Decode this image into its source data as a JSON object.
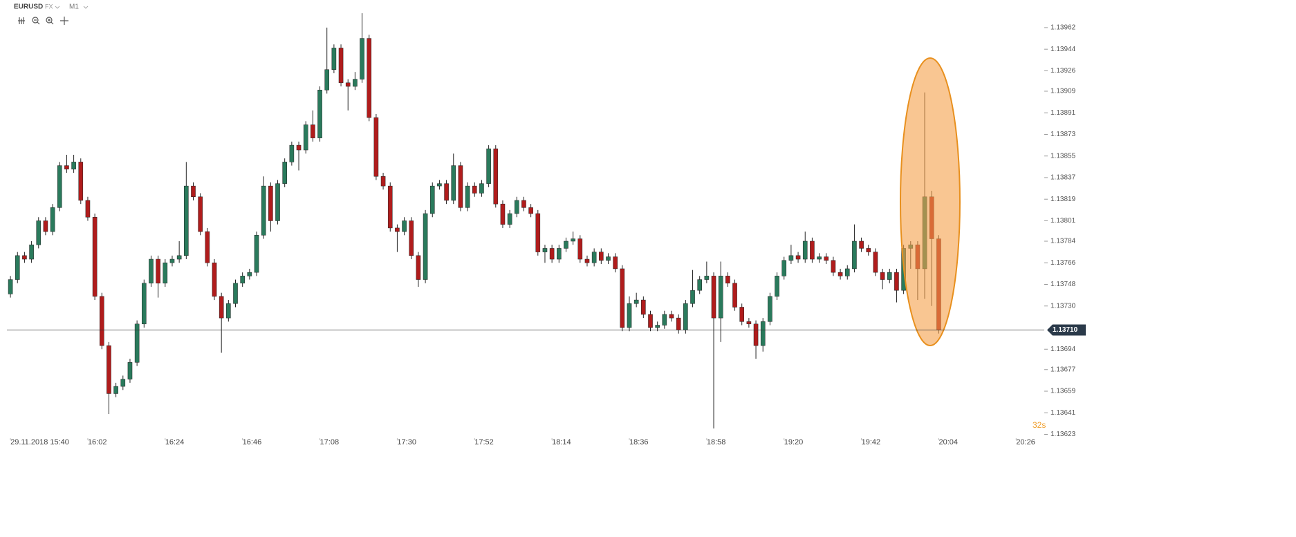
{
  "chart_data": {
    "type": "candlestick",
    "header": {
      "symbol": "EURUSD",
      "market": "FX",
      "timeframe": "M1"
    },
    "countdown": "32s",
    "up_color": "#2a7a5c",
    "down_color": "#b01c1c",
    "xlim": [
      "15:39",
      "20:34"
    ],
    "xticks": [
      {
        "value": "15:40",
        "label": "29.11.2018 15:40"
      },
      "16:02",
      "16:24",
      "16:46",
      "17:08",
      "17:30",
      "17:52",
      "18:14",
      "18:36",
      "18:58",
      "19:20",
      "19:42",
      "20:04",
      "20:26"
    ],
    "ylim": [
      1.13621,
      1.13985
    ],
    "yticks": [
      1.13962,
      1.13944,
      1.13926,
      1.13909,
      1.13891,
      1.13873,
      1.13855,
      1.13837,
      1.13819,
      1.13801,
      1.13784,
      1.13766,
      1.13748,
      {
        "value": 1.1373,
        "label": "1.13730"
      },
      1.13694,
      1.13677,
      1.13659,
      1.13641,
      1.13623
    ],
    "current_price": {
      "value": 1.1371,
      "label": "1.13710"
    },
    "x": [
      "15:40",
      "15:42",
      "15:44",
      "15:46",
      "15:48",
      "15:50",
      "15:52",
      "15:54",
      "15:56",
      "15:58",
      "16:00",
      "16:02",
      "16:04",
      "16:06",
      "16:08",
      "16:10",
      "16:12",
      "16:14",
      "16:16",
      "16:18",
      "16:20",
      "16:22",
      "16:24",
      "16:26",
      "16:28",
      "16:30",
      "16:32",
      "16:34",
      "16:36",
      "16:38",
      "16:40",
      "16:42",
      "16:44",
      "16:46",
      "16:48",
      "16:50",
      "16:52",
      "16:54",
      "16:56",
      "16:58",
      "17:00",
      "17:02",
      "17:04",
      "17:06",
      "17:08",
      "17:10",
      "17:12",
      "17:14",
      "17:16",
      "17:18",
      "17:20",
      "17:22",
      "17:24",
      "17:26",
      "17:28",
      "17:30",
      "17:32",
      "17:34",
      "17:36",
      "17:38",
      "17:40",
      "17:42",
      "17:44",
      "17:46",
      "17:48",
      "17:50",
      "17:52",
      "17:54",
      "17:56",
      "17:58",
      "18:00",
      "18:02",
      "18:04",
      "18:06",
      "18:08",
      "18:10",
      "18:12",
      "18:14",
      "18:16",
      "18:18",
      "18:20",
      "18:22",
      "18:24",
      "18:26",
      "18:28",
      "18:30",
      "18:32",
      "18:34",
      "18:36",
      "18:38",
      "18:40",
      "18:42",
      "18:44",
      "18:46",
      "18:48",
      "18:50",
      "18:52",
      "18:54",
      "18:56",
      "18:58",
      "19:00",
      "19:02",
      "19:04",
      "19:06",
      "19:08",
      "19:10",
      "19:12",
      "19:14",
      "19:16",
      "19:18",
      "19:20",
      "19:22",
      "19:24",
      "19:26",
      "19:28",
      "19:30",
      "19:32",
      "19:34",
      "19:36",
      "19:38",
      "19:40",
      "19:42",
      "19:44",
      "19:46",
      "19:48",
      "19:50",
      "19:52",
      "19:54",
      "19:56",
      "19:58",
      "20:00",
      "20:02",
      "20:04"
    ],
    "ohlc": [
      [
        1.1374,
        1.13755,
        1.13737,
        1.13752
      ],
      [
        1.13752,
        1.13775,
        1.13749,
        1.13772
      ],
      [
        1.13772,
        1.13775,
        1.13766,
        1.13769
      ],
      [
        1.13769,
        1.13784,
        1.13766,
        1.13781
      ],
      [
        1.13781,
        1.13804,
        1.13778,
        1.13801
      ],
      [
        1.13801,
        1.13804,
        1.13789,
        1.13792
      ],
      [
        1.13792,
        1.13815,
        1.13789,
        1.13812
      ],
      [
        1.13812,
        1.1385,
        1.13809,
        1.13847
      ],
      [
        1.13847,
        1.13856,
        1.13841,
        1.13844
      ],
      [
        1.13844,
        1.13856,
        1.13841,
        1.1385
      ],
      [
        1.1385,
        1.13853,
        1.13815,
        1.13818
      ],
      [
        1.13818,
        1.13821,
        1.13801,
        1.13804
      ],
      [
        1.13804,
        1.13807,
        1.13735,
        1.13738
      ],
      [
        1.13738,
        1.13741,
        1.13694,
        1.13697
      ],
      [
        1.13697,
        1.137,
        1.1364,
        1.13657
      ],
      [
        1.13657,
        1.13666,
        1.13654,
        1.13663
      ],
      [
        1.13663,
        1.13672,
        1.1366,
        1.13669
      ],
      [
        1.13669,
        1.13686,
        1.13666,
        1.13683
      ],
      [
        1.13683,
        1.13718,
        1.1368,
        1.13715
      ],
      [
        1.13715,
        1.13752,
        1.13712,
        1.13749
      ],
      [
        1.13749,
        1.13772,
        1.13746,
        1.13769
      ],
      [
        1.13769,
        1.13772,
        1.13737,
        1.13749
      ],
      [
        1.13749,
        1.13769,
        1.13746,
        1.13766
      ],
      [
        1.13766,
        1.13772,
        1.13763,
        1.13769
      ],
      [
        1.13769,
        1.13784,
        1.13766,
        1.13772
      ],
      [
        1.13772,
        1.1385,
        1.13769,
        1.1383
      ],
      [
        1.1383,
        1.13833,
        1.13818,
        1.13821
      ],
      [
        1.13821,
        1.13824,
        1.13789,
        1.13792
      ],
      [
        1.13792,
        1.13795,
        1.13763,
        1.13766
      ],
      [
        1.13766,
        1.13769,
        1.13735,
        1.13738
      ],
      [
        1.13738,
        1.13741,
        1.13691,
        1.1372
      ],
      [
        1.1372,
        1.13735,
        1.13717,
        1.13732
      ],
      [
        1.13732,
        1.13752,
        1.13729,
        1.13749
      ],
      [
        1.13749,
        1.13758,
        1.13746,
        1.13755
      ],
      [
        1.13755,
        1.13761,
        1.13752,
        1.13758
      ],
      [
        1.13758,
        1.13792,
        1.13755,
        1.13789
      ],
      [
        1.13789,
        1.13838,
        1.13786,
        1.1383
      ],
      [
        1.1383,
        1.13833,
        1.13792,
        1.13801
      ],
      [
        1.13801,
        1.13835,
        1.13798,
        1.13832
      ],
      [
        1.13832,
        1.13853,
        1.13829,
        1.1385
      ],
      [
        1.1385,
        1.13867,
        1.13847,
        1.13864
      ],
      [
        1.13864,
        1.13867,
        1.13843,
        1.1386
      ],
      [
        1.1386,
        1.13884,
        1.13857,
        1.13881
      ],
      [
        1.13881,
        1.13893,
        1.13867,
        1.1387
      ],
      [
        1.1387,
        1.13913,
        1.13867,
        1.1391
      ],
      [
        1.1391,
        1.13962,
        1.13907,
        1.13927
      ],
      [
        1.13927,
        1.13948,
        1.13924,
        1.13945
      ],
      [
        1.13945,
        1.13948,
        1.13913,
        1.13916
      ],
      [
        1.13916,
        1.13919,
        1.13893,
        1.13913
      ],
      [
        1.13913,
        1.13925,
        1.1391,
        1.13919
      ],
      [
        1.13919,
        1.13974,
        1.13916,
        1.13953
      ],
      [
        1.13953,
        1.13956,
        1.13884,
        1.13887
      ],
      [
        1.13887,
        1.1389,
        1.13835,
        1.13838
      ],
      [
        1.13838,
        1.13841,
        1.13827,
        1.1383
      ],
      [
        1.1383,
        1.13833,
        1.13792,
        1.13795
      ],
      [
        1.13795,
        1.13798,
        1.13775,
        1.13792
      ],
      [
        1.13792,
        1.13804,
        1.13789,
        1.13801
      ],
      [
        1.13801,
        1.13804,
        1.13769,
        1.13772
      ],
      [
        1.13772,
        1.13775,
        1.13746,
        1.13752
      ],
      [
        1.13752,
        1.1381,
        1.13749,
        1.13807
      ],
      [
        1.13807,
        1.13833,
        1.13804,
        1.1383
      ],
      [
        1.1383,
        1.13835,
        1.13827,
        1.13832
      ],
      [
        1.13832,
        1.13835,
        1.13815,
        1.13818
      ],
      [
        1.13818,
        1.13857,
        1.13815,
        1.13847
      ],
      [
        1.13847,
        1.1385,
        1.13809,
        1.13812
      ],
      [
        1.13812,
        1.13833,
        1.13809,
        1.1383
      ],
      [
        1.1383,
        1.13833,
        1.13821,
        1.13824
      ],
      [
        1.13824,
        1.13835,
        1.13821,
        1.13832
      ],
      [
        1.13832,
        1.13864,
        1.13829,
        1.13861
      ],
      [
        1.13861,
        1.13864,
        1.13812,
        1.13815
      ],
      [
        1.13815,
        1.13818,
        1.13795,
        1.13798
      ],
      [
        1.13798,
        1.1381,
        1.13795,
        1.13807
      ],
      [
        1.13807,
        1.13821,
        1.13804,
        1.13818
      ],
      [
        1.13818,
        1.13821,
        1.13809,
        1.13812
      ],
      [
        1.13812,
        1.13815,
        1.13804,
        1.13807
      ],
      [
        1.13807,
        1.1381,
        1.13772,
        1.13775
      ],
      [
        1.13775,
        1.13781,
        1.13766,
        1.13778
      ],
      [
        1.13778,
        1.13781,
        1.13766,
        1.13769
      ],
      [
        1.13769,
        1.13781,
        1.13766,
        1.13778
      ],
      [
        1.13778,
        1.13787,
        1.13775,
        1.13784
      ],
      [
        1.13784,
        1.13792,
        1.13781,
        1.13786
      ],
      [
        1.13786,
        1.13789,
        1.13766,
        1.13769
      ],
      [
        1.13769,
        1.13772,
        1.13763,
        1.13766
      ],
      [
        1.13766,
        1.13778,
        1.13763,
        1.13775
      ],
      [
        1.13775,
        1.13778,
        1.13765,
        1.13768
      ],
      [
        1.13768,
        1.13774,
        1.13765,
        1.13771
      ],
      [
        1.13771,
        1.13774,
        1.13758,
        1.13761
      ],
      [
        1.13761,
        1.13764,
        1.13709,
        1.13712
      ],
      [
        1.13712,
        1.13738,
        1.13709,
        1.13732
      ],
      [
        1.13732,
        1.13741,
        1.13729,
        1.13735
      ],
      [
        1.13735,
        1.13738,
        1.1372,
        1.13723
      ],
      [
        1.13723,
        1.13726,
        1.13709,
        1.13712
      ],
      [
        1.13712,
        1.13717,
        1.13709,
        1.13714
      ],
      [
        1.13714,
        1.13726,
        1.13711,
        1.13723
      ],
      [
        1.13723,
        1.13726,
        1.13717,
        1.1372
      ],
      [
        1.1372,
        1.13723,
        1.13707,
        1.1371
      ],
      [
        1.1371,
        1.13735,
        1.13707,
        1.13732
      ],
      [
        1.13732,
        1.1376,
        1.13729,
        1.13743
      ],
      [
        1.13743,
        1.13755,
        1.1374,
        1.13752
      ],
      [
        1.13752,
        1.13767,
        1.13749,
        1.13755
      ],
      [
        1.13755,
        1.13758,
        1.13628,
        1.1372
      ],
      [
        1.1372,
        1.13767,
        1.137,
        1.13755
      ],
      [
        1.13755,
        1.13758,
        1.13746,
        1.13749
      ],
      [
        1.13749,
        1.13752,
        1.13726,
        1.13729
      ],
      [
        1.13729,
        1.13732,
        1.13714,
        1.13717
      ],
      [
        1.13717,
        1.1372,
        1.13712,
        1.13715
      ],
      [
        1.13715,
        1.13718,
        1.13686,
        1.13697
      ],
      [
        1.13697,
        1.1372,
        1.13692,
        1.13717
      ],
      [
        1.13717,
        1.13741,
        1.13714,
        1.13738
      ],
      [
        1.13738,
        1.13758,
        1.13735,
        1.13755
      ],
      [
        1.13755,
        1.13771,
        1.13752,
        1.13768
      ],
      [
        1.13768,
        1.13781,
        1.13765,
        1.13772
      ],
      [
        1.13772,
        1.13775,
        1.13766,
        1.13769
      ],
      [
        1.13769,
        1.13792,
        1.13766,
        1.13784
      ],
      [
        1.13784,
        1.13787,
        1.13766,
        1.13769
      ],
      [
        1.13769,
        1.13774,
        1.13766,
        1.13771
      ],
      [
        1.13771,
        1.13774,
        1.13765,
        1.13768
      ],
      [
        1.13768,
        1.13771,
        1.13755,
        1.13758
      ],
      [
        1.13758,
        1.13761,
        1.13752,
        1.13755
      ],
      [
        1.13755,
        1.13764,
        1.13752,
        1.13761
      ],
      [
        1.13761,
        1.13798,
        1.13758,
        1.13784
      ],
      [
        1.13784,
        1.13787,
        1.13775,
        1.13778
      ],
      [
        1.13778,
        1.13781,
        1.13772,
        1.13775
      ],
      [
        1.13775,
        1.13778,
        1.13755,
        1.13758
      ],
      [
        1.13758,
        1.13761,
        1.13744,
        1.13752
      ],
      [
        1.13752,
        1.13761,
        1.13749,
        1.13758
      ],
      [
        1.13758,
        1.13761,
        1.13733,
        1.13743
      ],
      [
        1.13743,
        1.13781,
        1.1374,
        1.13778
      ],
      [
        1.13778,
        1.13784,
        1.13761,
        1.13781
      ],
      [
        1.13781,
        1.13784,
        1.13735,
        1.13761
      ],
      [
        1.13761,
        1.13908,
        1.13736,
        1.13821
      ],
      [
        1.13821,
        1.13826,
        1.1373,
        1.13786
      ],
      [
        1.13786,
        1.13789,
        1.13707,
        1.1371
      ]
    ]
  }
}
